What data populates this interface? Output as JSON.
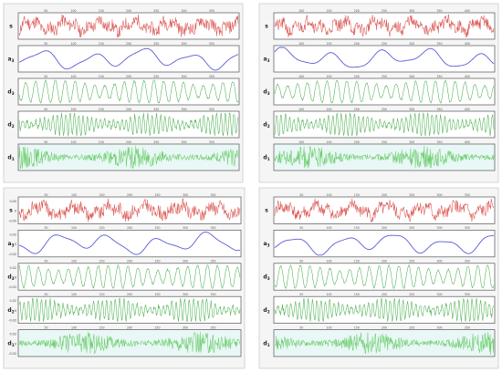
{
  "chart_data": [
    {
      "type": "line",
      "position": "top-left",
      "x_ticks": [
        "50",
        "100",
        "150",
        "200",
        "250",
        "300",
        "350"
      ],
      "panels": [
        {
          "label": "s",
          "color": "#d9534f",
          "style": "noisy",
          "seed": 11,
          "ylim": [
            -1,
            1
          ],
          "ticks": []
        },
        {
          "label": "a3",
          "color": "#5b5bd6",
          "style": "smooth",
          "seed": 12,
          "ylim": [
            -1,
            1
          ],
          "ticks": []
        },
        {
          "label": "d3",
          "color": "#4caf50",
          "style": "wave",
          "seed": 13,
          "ylim": [
            -1,
            1
          ],
          "ticks": []
        },
        {
          "label": "d2",
          "color": "#4caf50",
          "style": "fast",
          "seed": 14,
          "ylim": [
            -1,
            1
          ],
          "ticks": []
        },
        {
          "label": "d1",
          "color": "#66cc66",
          "style": "burst",
          "seed": 15,
          "ylim": [
            -1,
            1
          ],
          "ticks": []
        }
      ]
    },
    {
      "type": "line",
      "position": "top-right",
      "x_ticks": [
        "100",
        "150",
        "200",
        "250",
        "300",
        "350",
        "400"
      ],
      "panels": [
        {
          "label": "s",
          "color": "#d9534f",
          "style": "noisy",
          "seed": 21,
          "ylim": [
            -1,
            1
          ],
          "ticks": []
        },
        {
          "label": "a3",
          "color": "#5b5bd6",
          "style": "smooth",
          "seed": 22,
          "ylim": [
            -1,
            1
          ],
          "ticks": []
        },
        {
          "label": "d3",
          "color": "#4caf50",
          "style": "wave",
          "seed": 23,
          "ylim": [
            -1,
            1
          ],
          "ticks": []
        },
        {
          "label": "d2",
          "color": "#4caf50",
          "style": "fast",
          "seed": 24,
          "ylim": [
            -1,
            1
          ],
          "ticks": []
        },
        {
          "label": "d1",
          "color": "#66cc66",
          "style": "burst",
          "seed": 25,
          "ylim": [
            -1,
            1
          ],
          "ticks": []
        }
      ]
    },
    {
      "type": "line",
      "position": "bottom-left",
      "x_ticks": [
        "50",
        "100",
        "150",
        "200",
        "250",
        "300",
        "350"
      ],
      "panels": [
        {
          "label": "s",
          "color": "#d9534f",
          "style": "noisy",
          "seed": 31,
          "ylim": [
            -1,
            1
          ],
          "ticks": [
            "0.05",
            "0",
            "-0.05"
          ]
        },
        {
          "label": "a3",
          "color": "#5b5bd6",
          "style": "smooth",
          "seed": 32,
          "ylim": [
            -1,
            1
          ],
          "ticks": [
            "0.02",
            "0",
            "-0.02"
          ]
        },
        {
          "label": "d3",
          "color": "#4caf50",
          "style": "wave",
          "seed": 33,
          "ylim": [
            -1,
            1
          ],
          "ticks": [
            "0.02",
            "0",
            "-0.02"
          ]
        },
        {
          "label": "d2",
          "color": "#4caf50",
          "style": "fast",
          "seed": 34,
          "ylim": [
            -1,
            1
          ],
          "ticks": [
            "0.02",
            "0",
            "-0.02"
          ]
        },
        {
          "label": "d1",
          "color": "#66cc66",
          "style": "burst",
          "seed": 35,
          "ylim": [
            -1,
            1
          ],
          "ticks": [
            "0.02",
            "0",
            "-0.02"
          ]
        }
      ]
    },
    {
      "type": "line",
      "position": "bottom-right",
      "x_ticks": [
        "50",
        "100",
        "150",
        "200",
        "250",
        "300",
        "350"
      ],
      "panels": [
        {
          "label": "s",
          "color": "#d9534f",
          "style": "noisy",
          "seed": 41,
          "ylim": [
            -1,
            1
          ],
          "ticks": []
        },
        {
          "label": "a3",
          "color": "#5b5bd6",
          "style": "smooth",
          "seed": 42,
          "ylim": [
            -1,
            1
          ],
          "ticks": []
        },
        {
          "label": "d3",
          "color": "#4caf50",
          "style": "wave",
          "seed": 43,
          "ylim": [
            -1,
            1
          ],
          "ticks": []
        },
        {
          "label": "d2",
          "color": "#4caf50",
          "style": "fast",
          "seed": 44,
          "ylim": [
            -1,
            1
          ],
          "ticks": []
        },
        {
          "label": "d1",
          "color": "#66cc66",
          "style": "burst",
          "seed": 45,
          "ylim": [
            -1,
            1
          ],
          "ticks": []
        }
      ]
    }
  ]
}
